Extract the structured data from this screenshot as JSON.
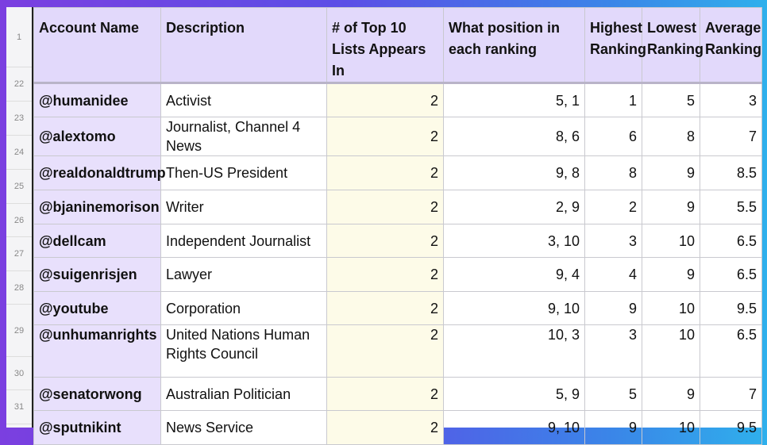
{
  "row_numbers": [
    "1",
    "22",
    "23",
    "24",
    "25",
    "26",
    "27",
    "28",
    "29",
    "30",
    "31"
  ],
  "headers": {
    "account": "Account Name",
    "description": "Description",
    "count": "# of Top 10 Lists Appears In",
    "positions": "What position in each ranking",
    "highest": "Highest Ranking",
    "lowest": "Lowest Ranking",
    "average": "Average Ranking"
  },
  "rows": [
    {
      "account": "@humanidee",
      "description": "Activist",
      "count": "2",
      "positions": "5, 1",
      "highest": "1",
      "lowest": "5",
      "average": "3"
    },
    {
      "account": "@alextomo",
      "description": "Journalist, Channel 4 News",
      "count": "2",
      "positions": "8, 6",
      "highest": "6",
      "lowest": "8",
      "average": "7"
    },
    {
      "account": "@realdonaldtrump",
      "description": "Then-US President",
      "count": "2",
      "positions": "9, 8",
      "highest": "8",
      "lowest": "9",
      "average": "8.5"
    },
    {
      "account": "@bjaninemorison",
      "description": "Writer",
      "count": "2",
      "positions": "2, 9",
      "highest": "2",
      "lowest": "9",
      "average": "5.5"
    },
    {
      "account": "@dellcam",
      "description": "Independent Journalist",
      "count": "2",
      "positions": "3, 10",
      "highest": "3",
      "lowest": "10",
      "average": "6.5"
    },
    {
      "account": "@suigenrisjen",
      "description": "Lawyer",
      "count": "2",
      "positions": "9, 4",
      "highest": "4",
      "lowest": "9",
      "average": "6.5"
    },
    {
      "account": "@youtube",
      "description": "Corporation",
      "count": "2",
      "positions": "9, 10",
      "highest": "9",
      "lowest": "10",
      "average": "9.5"
    },
    {
      "account": "@unhumanrights",
      "description": "United Nations Human Rights Council",
      "count": "2",
      "positions": "10, 3",
      "highest": "3",
      "lowest": "10",
      "average": "6.5"
    },
    {
      "account": "@senatorwong",
      "description": "Australian Politician",
      "count": "2",
      "positions": "5, 9",
      "highest": "5",
      "lowest": "9",
      "average": "7"
    },
    {
      "account": "@sputnikint",
      "description": "News Service",
      "count": "2",
      "positions": "9, 10",
      "highest": "9",
      "lowest": "10",
      "average": "9.5"
    }
  ]
}
